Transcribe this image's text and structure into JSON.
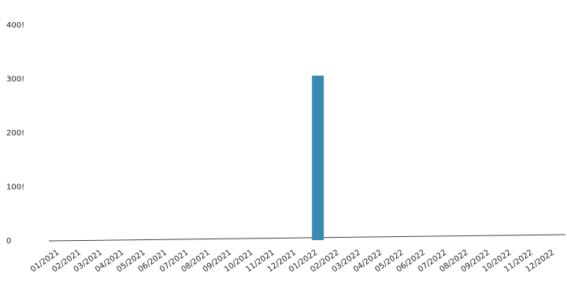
{
  "chart_data": {
    "type": "bar",
    "title": "",
    "xlabel": "",
    "ylabel": "",
    "categories": [
      "01/2021",
      "02/2021",
      "03/2021",
      "04/2021",
      "05/2021",
      "06/2021",
      "07/2021",
      "08/2021",
      "09/2021",
      "10/2021",
      "11/2021",
      "12/2021",
      "01/2022",
      "02/2022",
      "03/2022",
      "04/2022",
      "05/2022",
      "06/2022",
      "07/2022",
      "08/2022",
      "09/2022",
      "10/2022",
      "11/2022",
      "12/2022"
    ],
    "values": [
      0,
      0,
      0,
      0,
      0,
      0,
      0,
      0,
      0,
      0,
      0,
      0,
      305,
      0,
      0,
      0,
      0,
      0,
      0,
      0,
      0,
      0,
      0,
      0
    ],
    "ylim": [
      0,
      400
    ],
    "y_ticks": [
      0,
      100,
      200,
      300,
      400
    ],
    "y_tick_labels": [
      "0",
      "100!",
      "200!",
      "300!",
      "400!"
    ],
    "grid": false,
    "legend": "none",
    "colors": {
      "bar": "#3a8bb1",
      "axis": "#444444"
    }
  }
}
